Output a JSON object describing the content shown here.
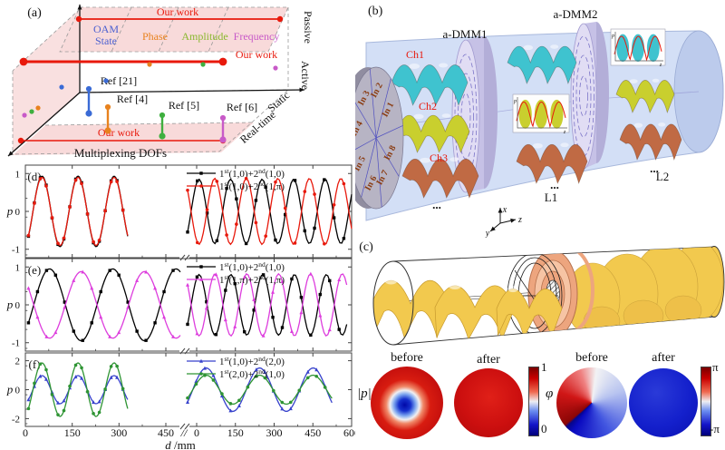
{
  "panel_b": {
    "label": "(b)",
    "dmm1_label": "a-DMM1",
    "dmm2_label": "a-DMM2",
    "channel_labels": [
      "Ch1",
      "Ch2",
      "Ch3"
    ],
    "channel_color": "#e8190c",
    "input_labels": [
      "In 1",
      "In 2",
      "In 3",
      "In 4",
      "In 5",
      "In 6",
      "In 7",
      "In 8"
    ],
    "lens1_label": "L1",
    "lens2_label": "L2",
    "ellipsis": "...",
    "axis_x": "x",
    "axis_y": "y",
    "axis_z": "z",
    "inset_ylabel": "p",
    "inset_xlabel": "z",
    "cylinder_color": "#d3dff6",
    "disc_color": "#b7b4c4",
    "dmm_face_color": "#e1ddf4",
    "ch1_color": "#3fc3cf",
    "ch2_color": "#c9cf2e",
    "ch3_color": "#c06a44"
  },
  "panel_c": {
    "label": "(c)",
    "gold_color": "#f2c94e",
    "copper_color": "#eda57e"
  },
  "panel_maps": {
    "amplitude_label": "|p|",
    "phase_label": "φ",
    "before_label": "before",
    "after_label": "after",
    "amp_cbar_top": "1",
    "amp_cbar_bottom": "0",
    "phase_cbar_top": "π",
    "phase_cbar_bottom": "-π"
  },
  "chart_data": [
    {
      "id": "dof_map",
      "type": "scatter",
      "title_label": "(a)",
      "xlabel": "Multiplexing DOFs",
      "y_axis_top_label": "Passive",
      "y_axis_bottom_label": "Active",
      "depth_near_label": "Real-time",
      "depth_far_label": "Static",
      "our_work_label": "Our work",
      "accent_red": "#e8190c",
      "plane_pink": "#f8dada",
      "columns": [
        {
          "line1": "OAM",
          "line2": "State",
          "color": "#4a5fd0",
          "x": 117
        },
        {
          "line1": "Phase",
          "line2": "",
          "color": "#e8821e",
          "x": 171
        },
        {
          "line1": "Amplitude",
          "line2": "",
          "color": "#8ab82e",
          "x": 226
        },
        {
          "line1": "Frequency",
          "line2": "",
          "color": "#c85ac8",
          "x": 283
        }
      ],
      "our_work_lines": [
        {
          "x1": 87,
          "y1": 21,
          "x2": 309,
          "y2": 21,
          "lx": 196,
          "ly": 17,
          "lw": 1.8,
          "r": 3.2
        },
        {
          "x1": 26,
          "y1": 68,
          "x2": 246,
          "y2": 68,
          "lx": 283,
          "ly": 64,
          "lw": 3,
          "r": 4.4
        },
        {
          "x1": 23,
          "y1": 155,
          "x2": 246,
          "y2": 155,
          "lx": 131,
          "ly": 150,
          "lw": 1.6,
          "r": 3.2
        }
      ],
      "references": [
        {
          "x": 98,
          "y1": 98,
          "y2": 125,
          "color": "#3a6bd6",
          "label": "Ref [21]",
          "lx": 131,
          "ly": 93
        },
        {
          "x": 119,
          "y1": 118,
          "y2": 144,
          "color": "#e8821e",
          "label": "Ref [4]",
          "lx": 146,
          "ly": 113
        },
        {
          "x": 179,
          "y1": 127,
          "y2": 150,
          "color": "#3faf3f",
          "label": "Ref [5]",
          "lx": 203,
          "ly": 120
        },
        {
          "x": 246,
          "y1": 130,
          "y2": 154,
          "color": "#c85ac8",
          "label": "Ref [6]",
          "lx": 267,
          "ly": 122
        }
      ],
      "floating_dots": [
        {
          "x": 68,
          "y": 96,
          "color": "#3a6bd6"
        },
        {
          "x": 117,
          "y": 89,
          "color": "#3a6bd6"
        },
        {
          "x": 165,
          "y": 71,
          "color": "#e8821e"
        },
        {
          "x": 224,
          "y": 71,
          "color": "#3faf3f"
        },
        {
          "x": 304,
          "y": 75,
          "color": "#c85ac8"
        },
        {
          "x": 27,
          "y": 127,
          "color": "#c85ac8"
        },
        {
          "x": 35,
          "y": 123,
          "color": "#3faf3f"
        },
        {
          "x": 42,
          "y": 119,
          "color": "#e8821e"
        }
      ]
    },
    {
      "id": "pressure_curves",
      "type": "line",
      "xlabel_var": "d",
      "xlabel_unit": " /mm",
      "break_mark": "//",
      "xticks_left": [
        "0",
        "150",
        "300",
        "450"
      ],
      "xticks_right": [
        "0",
        "150",
        "300",
        "450",
        "600"
      ],
      "panels": [
        {
          "id": "d",
          "label": "(d)",
          "ylabel": "p",
          "ymax": 1.15,
          "yticks": [
            "1",
            "0",
            "-1"
          ],
          "ytick_vals": [
            1,
            0,
            -1
          ],
          "yminor": 0.5,
          "series": [
            {
              "label": "1^{st}(1,0)+2^{nd}(1,0)",
              "color": "#000000",
              "marker": "square",
              "left": {
                "amp": 0.93,
                "cycles": 2.75,
                "phase_deg": -45,
                "span": [
                  0.02,
                  0.66
                ]
              },
              "right": {
                "amp": 0.85,
                "cycles": 5.2,
                "phase_deg": -40,
                "span": [
                  0.0,
                  1.0
                ]
              }
            },
            {
              "label": "1^{st}(1,0)+2^{nd}(1,π)",
              "color": "#e8190c",
              "marker": "circle",
              "left": {
                "amp": 0.9,
                "cycles": 2.75,
                "phase_deg": -45,
                "span": [
                  0.02,
                  0.66
                ]
              },
              "right": {
                "amp": 0.87,
                "cycles": 5.2,
                "phase_deg": 140,
                "span": [
                  0.0,
                  1.0
                ]
              }
            }
          ]
        },
        {
          "id": "e",
          "label": "(e)",
          "ylabel": "p",
          "ymax": 1.15,
          "yticks": [
            "1",
            "0",
            "-1"
          ],
          "ytick_vals": [
            1,
            0,
            -1
          ],
          "yminor": 0.5,
          "series": [
            {
              "label": "1^{st}(1,0)+2^{nd}(1,0)",
              "color": "#000000",
              "marker": "square",
              "left": {
                "amp": 0.95,
                "cycles": 2.4,
                "phase_deg": -30,
                "span": [
                  0.02,
                  1.0
                ]
              },
              "right": {
                "amp": 0.8,
                "cycles": 5.0,
                "phase_deg": -40,
                "span": [
                  0.0,
                  0.97
                ]
              }
            },
            {
              "label": "1^{st}(1,π)+2^{nd}(1,π)",
              "color": "#dd3ddd",
              "marker": "triangle",
              "left": {
                "amp": 0.88,
                "cycles": 2.4,
                "phase_deg": 150,
                "span": [
                  0.02,
                  1.0
                ]
              },
              "right": {
                "amp": 0.82,
                "cycles": 5.0,
                "phase_deg": 140,
                "span": [
                  0.0,
                  0.97
                ]
              }
            }
          ]
        },
        {
          "id": "f",
          "label": "(f)",
          "ylabel": "p",
          "ymax": 2.35,
          "yticks": [
            "2",
            "0",
            "-2"
          ],
          "ytick_vals": [
            2,
            0,
            -2
          ],
          "yminor": 1,
          "series": [
            {
              "label": "1^{st}(1,0)+2^{nd}(2,0)",
              "color": "#3742cc",
              "marker": "triangle",
              "left": {
                "amp": 0.97,
                "cycles": 2.75,
                "phase_deg": -45,
                "span": [
                  0.02,
                  0.66
                ]
              },
              "right": {
                "amp": 1.5,
                "cycles": 2.7,
                "phase_deg": -35,
                "span": [
                  0.0,
                  0.88
                ]
              }
            },
            {
              "label": "1^{st}(2,0)+2^{nd}(1,0)",
              "color": "#2e9433",
              "marker": "circle",
              "left": {
                "amp": 1.85,
                "cycles": 2.75,
                "phase_deg": -45,
                "span": [
                  0.02,
                  0.66
                ]
              },
              "right": {
                "amp": 1.0,
                "cycles": 2.7,
                "phase_deg": -35,
                "span": [
                  0.0,
                  0.88
                ]
              }
            }
          ]
        }
      ]
    }
  ]
}
